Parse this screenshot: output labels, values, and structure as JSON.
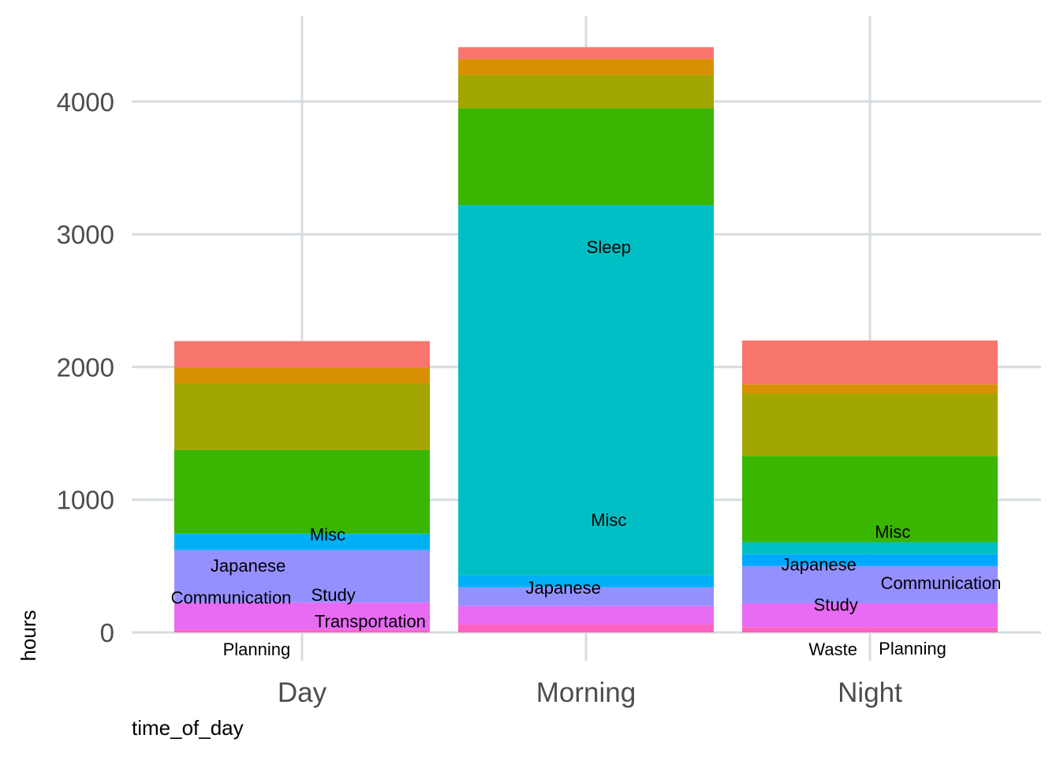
{
  "chart_data": {
    "type": "bar",
    "stacked": true,
    "xlabel": "time_of_day",
    "ylabel": "hours",
    "ylim": [
      0,
      4500
    ],
    "y_ticks": [
      0,
      1000,
      2000,
      3000,
      4000
    ],
    "categories": [
      "Day",
      "Morning",
      "Night"
    ],
    "grid": true,
    "legend": "none",
    "bars": [
      {
        "category": "Day",
        "segments": [
          {
            "value": 15,
            "color": "#FF61C3"
          },
          {
            "value": 5,
            "color": "#FF63B6"
          },
          {
            "value": 205,
            "color": "#E76BF3"
          },
          {
            "value": 395,
            "color": "#9590FF"
          },
          {
            "value": 5,
            "color": "#00A9FF"
          },
          {
            "value": 115,
            "color": "#00B0F6"
          },
          {
            "value": 5,
            "color": "#00BFC4"
          },
          {
            "value": 630,
            "color": "#39B600"
          },
          {
            "value": 500,
            "color": "#A3A500"
          },
          {
            "value": 120,
            "color": "#D89000"
          },
          {
            "value": 200,
            "color": "#F8766D"
          }
        ]
      },
      {
        "category": "Morning",
        "segments": [
          {
            "value": 60,
            "color": "#FF61C3"
          },
          {
            "value": 140,
            "color": "#E76BF3"
          },
          {
            "value": 140,
            "color": "#9590FF"
          },
          {
            "value": 90,
            "color": "#00B0F6"
          },
          {
            "value": 2790,
            "color": "#00BFC4"
          },
          {
            "value": 730,
            "color": "#39B600"
          },
          {
            "value": 250,
            "color": "#A3A500"
          },
          {
            "value": 120,
            "color": "#D89000"
          },
          {
            "value": 90,
            "color": "#F8766D"
          }
        ]
      },
      {
        "category": "Night",
        "segments": [
          {
            "value": 30,
            "color": "#FF61C3"
          },
          {
            "value": 10,
            "color": "#FF63B6"
          },
          {
            "value": 180,
            "color": "#E76BF3"
          },
          {
            "value": 280,
            "color": "#9590FF"
          },
          {
            "value": 90,
            "color": "#00A9FF"
          },
          {
            "value": 90,
            "color": "#00BFC4"
          },
          {
            "value": 650,
            "color": "#39B600"
          },
          {
            "value": 470,
            "color": "#A3A500"
          },
          {
            "value": 70,
            "color": "#D89000"
          },
          {
            "value": 330,
            "color": "#F8766D"
          }
        ]
      }
    ],
    "annotations": [
      {
        "text": "Misc",
        "category": "Day",
        "dx": 0.09,
        "y": 740
      },
      {
        "text": "Japanese",
        "category": "Day",
        "dx": -0.19,
        "y": 505
      },
      {
        "text": "Communication",
        "category": "Day",
        "dx": -0.25,
        "y": 265
      },
      {
        "text": "Study",
        "category": "Day",
        "dx": 0.11,
        "y": 285
      },
      {
        "text": "Transportation",
        "category": "Day",
        "dx": 0.24,
        "y": 85
      },
      {
        "text": "Planning",
        "category": "Day",
        "dx": -0.16,
        "y": -125
      },
      {
        "text": "Sleep",
        "category": "Morning",
        "dx": 0.08,
        "y": 2905
      },
      {
        "text": "Misc",
        "category": "Morning",
        "dx": 0.08,
        "y": 850
      },
      {
        "text": "Japanese",
        "category": "Morning",
        "dx": -0.08,
        "y": 340
      },
      {
        "text": "Misc",
        "category": "Night",
        "dx": 0.08,
        "y": 760
      },
      {
        "text": "Japanese",
        "category": "Night",
        "dx": -0.18,
        "y": 515
      },
      {
        "text": "Communication",
        "category": "Night",
        "dx": 0.25,
        "y": 375
      },
      {
        "text": "Study",
        "category": "Night",
        "dx": -0.12,
        "y": 210
      },
      {
        "text": "Waste",
        "category": "Night",
        "dx": -0.13,
        "y": -125
      },
      {
        "text": "Planning",
        "category": "Night",
        "dx": 0.15,
        "y": -120
      }
    ]
  }
}
